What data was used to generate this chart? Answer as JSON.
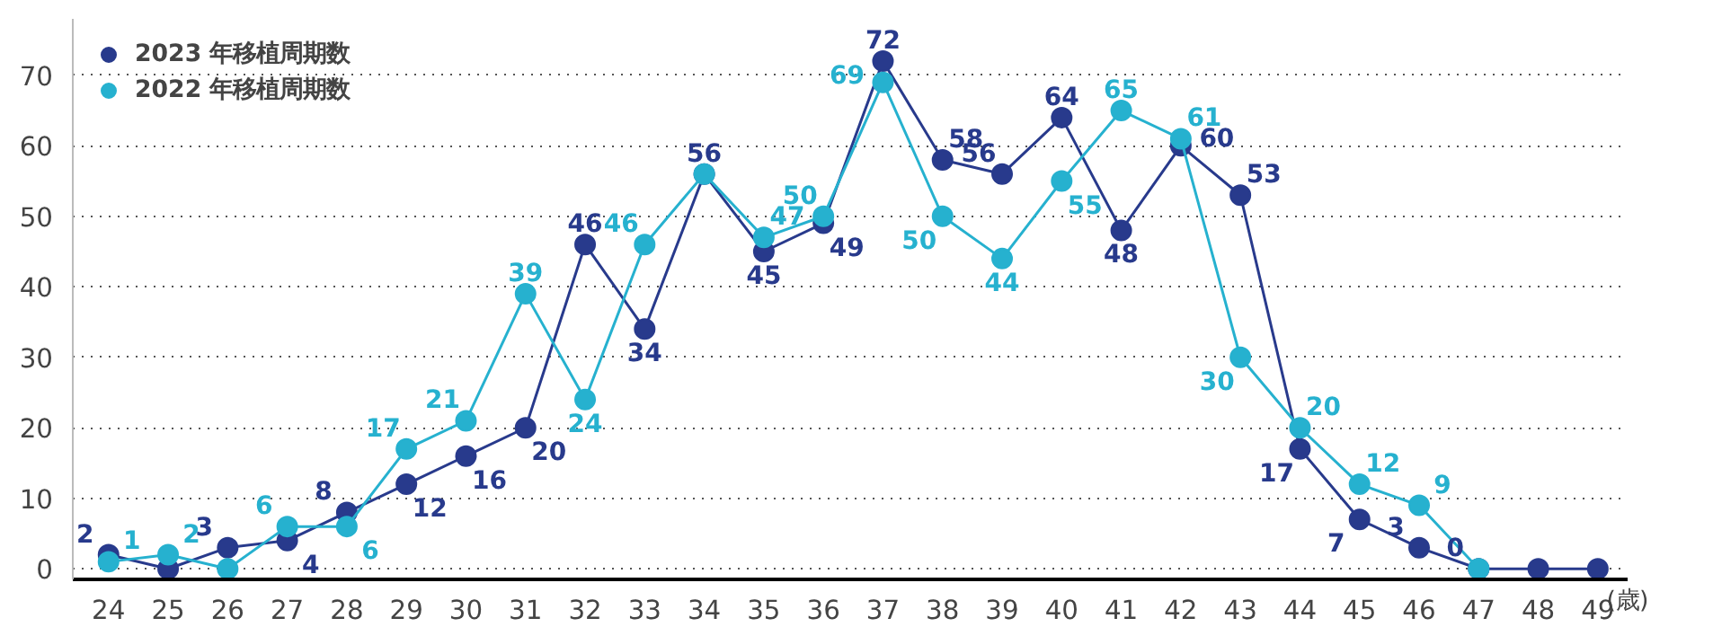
{
  "chart_data": {
    "type": "line",
    "xlabel": "(歳)",
    "x": [
      24,
      25,
      26,
      27,
      28,
      29,
      30,
      31,
      32,
      33,
      34,
      35,
      36,
      37,
      38,
      39,
      40,
      41,
      42,
      43,
      44,
      45,
      46,
      47,
      48,
      49
    ],
    "series": [
      {
        "name": "2023 年移植周期数",
        "color": "#283a8c",
        "values": [
          2,
          0,
          3,
          4,
          8,
          12,
          16,
          20,
          46,
          34,
          56,
          45,
          49,
          72,
          58,
          56,
          64,
          48,
          60,
          53,
          17,
          7,
          3,
          0,
          0,
          0
        ],
        "value_labels": [
          "2",
          null,
          "3",
          "4",
          "8",
          "12",
          "16",
          "20",
          "46",
          "34",
          "56",
          "45",
          "49",
          "72",
          "58",
          "56",
          "64",
          "48",
          "60",
          "53",
          "17",
          "7",
          "3",
          "0",
          null,
          null
        ]
      },
      {
        "name": "2022 年移植周期数",
        "color": "#26b1cf",
        "values": [
          1,
          2,
          0,
          6,
          6,
          17,
          21,
          39,
          24,
          46,
          56,
          47,
          50,
          69,
          50,
          44,
          55,
          65,
          61,
          30,
          20,
          12,
          9,
          0,
          null,
          null
        ],
        "value_labels": [
          "1",
          "2",
          null,
          "6",
          "6",
          "17",
          "21",
          "39",
          "24",
          "46",
          null,
          "47",
          "50",
          "69",
          "50",
          "44",
          "55",
          "65",
          "61",
          "30",
          "20",
          "12",
          "9",
          null,
          null,
          null
        ]
      }
    ],
    "xlim": [
      23.4,
      49.5
    ],
    "xticks": [
      24,
      25,
      26,
      27,
      28,
      29,
      30,
      31,
      32,
      33,
      34,
      35,
      36,
      37,
      38,
      39,
      40,
      41,
      42,
      43,
      44,
      45,
      46,
      47,
      48,
      49
    ],
    "ylim": [
      -1.5,
      78
    ],
    "yticks": [
      0,
      10,
      20,
      30,
      40,
      50,
      60,
      70
    ],
    "grid": "y",
    "legend": "top left",
    "marker": "circle",
    "line_style": "solid"
  }
}
